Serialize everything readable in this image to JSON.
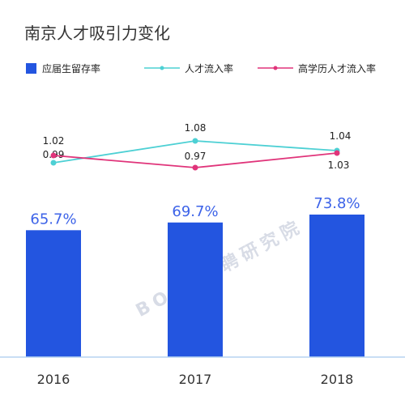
{
  "chart_data": {
    "type": "bar",
    "title": "南京人才吸引力变化",
    "categories": [
      "2016",
      "2017",
      "2018"
    ],
    "series": [
      {
        "name": "应届生留存率",
        "kind": "bar",
        "color": "#2355e0",
        "values": [
          65.7,
          69.7,
          73.8
        ],
        "labels": [
          "65.7%",
          "69.7%",
          "73.8%"
        ]
      },
      {
        "name": "人才流入率",
        "kind": "line",
        "color": "#4dd0d4",
        "values": [
          0.99,
          1.08,
          1.04
        ],
        "labels": [
          "0.99",
          "1.08",
          "1.04"
        ]
      },
      {
        "name": "高学历人才流入率",
        "kind": "line",
        "color": "#e0347a",
        "values": [
          1.02,
          0.97,
          1.03
        ],
        "labels": [
          "1.02",
          "0.97",
          "1.03"
        ]
      }
    ],
    "grid": false,
    "legend_position": "top"
  },
  "watermark": "BOSS直聘研究院"
}
